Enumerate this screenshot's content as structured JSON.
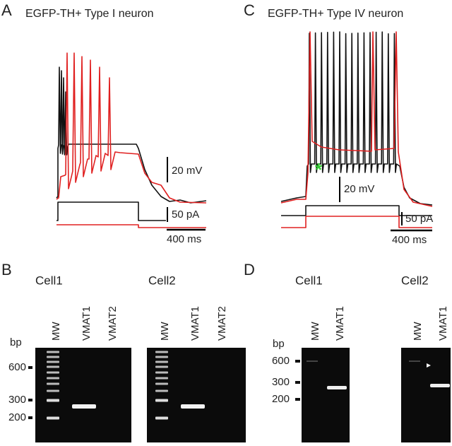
{
  "panels": [
    {
      "letter": "A",
      "title": "EGFP-TH+ Type I neuron",
      "scale_bars": [
        "20 mV",
        "50 pA",
        "400 ms"
      ]
    },
    {
      "letter": "C",
      "title": "EGFP-TH+ Type IV neuron",
      "scale_bars": [
        "20 mV",
        "50 pA",
        "400 ms"
      ]
    },
    {
      "letter": "B",
      "size_unit": "bp",
      "sizes": [
        600,
        300,
        200
      ],
      "gels": [
        {
          "label": "Cell1",
          "lanes": [
            "MW",
            "VMAT1",
            "VMAT2"
          ]
        },
        {
          "label": "Cell2",
          "lanes": [
            "MW",
            "VMAT1",
            "VMAT2"
          ]
        }
      ]
    },
    {
      "letter": "D",
      "size_unit": "bp",
      "sizes": [
        600,
        300,
        200
      ],
      "gels": [
        {
          "label": "Cell1",
          "lanes": [
            "MW",
            "VMAT1"
          ]
        },
        {
          "label": "Cell2",
          "lanes": [
            "MW",
            "VMAT1"
          ]
        }
      ]
    }
  ]
}
